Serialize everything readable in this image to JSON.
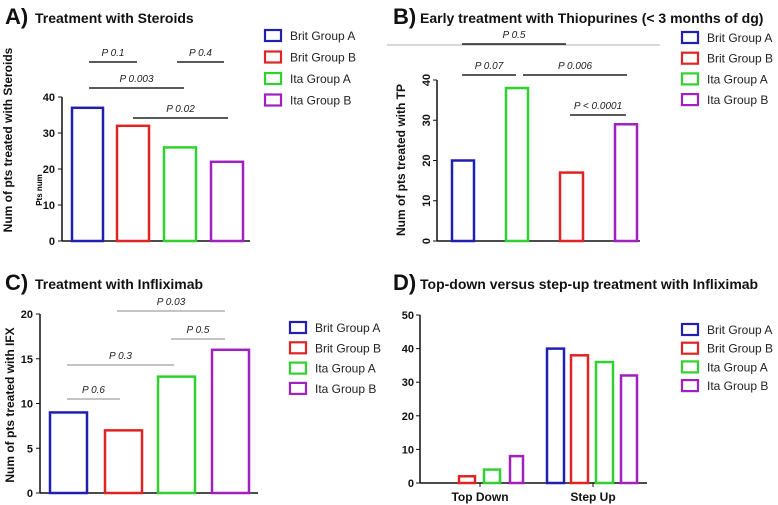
{
  "colors": {
    "Brit Group A": "#2020b0",
    "Brit Group B": "#e02424",
    "Ita Group A": "#30d030",
    "Ita Group B": "#a020c0"
  },
  "chart_data": [
    {
      "panel": "A)",
      "title": "Treatment with Steroids",
      "type": "bar",
      "ylabel": "Num of pts treated with Steroids",
      "ylabel2": "Pts num",
      "ylim": [
        0,
        40
      ],
      "yticks": [
        "0",
        "10",
        "20",
        "30",
        "40"
      ],
      "series": [
        {
          "name": "Brit Group A",
          "values": [
            37
          ]
        },
        {
          "name": "Brit Group B",
          "values": [
            32
          ]
        },
        {
          "name": "Ita Group A",
          "values": [
            26
          ]
        },
        {
          "name": "Ita Group B",
          "values": [
            22
          ]
        }
      ],
      "bar_order": [
        "Brit Group A",
        "Brit Group B",
        "Ita Group A",
        "Ita Group B"
      ],
      "legend": [
        "Brit Group A",
        "Brit Group B",
        "Ita Group A",
        "Ita Group B"
      ],
      "annotations": [
        {
          "text": "P 0.1",
          "between": [
            "Brit Group A",
            "Brit Group B"
          ]
        },
        {
          "text": "P 0.4",
          "between": [
            "Ita Group A",
            "Ita Group B"
          ]
        },
        {
          "text": "P 0.003",
          "between": [
            "Brit Group A",
            "Ita Group A"
          ]
        },
        {
          "text": "P 0.02",
          "between": [
            "Brit Group B",
            "Ita Group B"
          ]
        }
      ]
    },
    {
      "panel": "B)",
      "title": "Early treatment with Thiopurines (< 3 months of dg)",
      "type": "bar",
      "ylabel": "Num of pts treated with TP",
      "ylim": [
        0,
        40
      ],
      "yticks": [
        "0",
        "10",
        "20",
        "30",
        "40"
      ],
      "series": [
        {
          "name": "Brit Group A",
          "values": [
            20
          ]
        },
        {
          "name": "Ita Group A",
          "values": [
            38
          ]
        },
        {
          "name": "Brit Group B",
          "values": [
            17
          ]
        },
        {
          "name": "Ita Group B",
          "values": [
            29
          ]
        }
      ],
      "bar_order": [
        "Brit Group A",
        "Ita Group A",
        "Brit Group B",
        "Ita Group B"
      ],
      "legend": [
        "Brit Group A",
        "Brit Group B",
        "Ita Group A",
        "Ita Group B"
      ],
      "annotations": [
        {
          "text": "P 0.5",
          "between": [
            "Brit Group A",
            "Brit Group B"
          ]
        },
        {
          "text": "P 0.07",
          "between": [
            "Brit Group A",
            "Ita Group A"
          ]
        },
        {
          "text": "P 0.006",
          "between": [
            "Ita Group A",
            "Ita Group B"
          ]
        },
        {
          "text": "P < 0.0001",
          "between": [
            "Brit Group B",
            "Ita Group B"
          ]
        }
      ]
    },
    {
      "panel": "C)",
      "title": "Treatment with Infliximab",
      "type": "bar",
      "ylabel": "Num of pts treated with IFX",
      "ylim": [
        0,
        20
      ],
      "yticks": [
        "0",
        "5",
        "10",
        "15",
        "20"
      ],
      "series": [
        {
          "name": "Brit Group A",
          "values": [
            9
          ]
        },
        {
          "name": "Brit Group B",
          "values": [
            7
          ]
        },
        {
          "name": "Ita Group A",
          "values": [
            13
          ]
        },
        {
          "name": "Ita Group B",
          "values": [
            16
          ]
        }
      ],
      "bar_order": [
        "Brit Group A",
        "Brit Group B",
        "Ita Group A",
        "Ita Group B"
      ],
      "legend": [
        "Brit Group A",
        "Brit Group B",
        "Ita Group A",
        "Ita Group B"
      ],
      "annotations": [
        {
          "text": "P 0.03",
          "between": [
            "Brit Group B",
            "Ita Group B"
          ]
        },
        {
          "text": "P 0.5",
          "between": [
            "Ita Group A",
            "Ita Group B"
          ]
        },
        {
          "text": "P 0.3",
          "between": [
            "Brit Group A",
            "Ita Group A"
          ]
        },
        {
          "text": "P 0.6",
          "between": [
            "Brit Group A",
            "Brit Group B"
          ]
        }
      ]
    },
    {
      "panel": "D)",
      "title": "Top-down versus step-up treatment with Infliximab",
      "type": "bar",
      "ylim": [
        0,
        50
      ],
      "yticks": [
        "0",
        "10",
        "20",
        "30",
        "40",
        "50"
      ],
      "categories": [
        "Top Down",
        "Step Up"
      ],
      "series": [
        {
          "name": "Brit Group A",
          "values": [
            0,
            40
          ]
        },
        {
          "name": "Brit Group B",
          "values": [
            2,
            38
          ]
        },
        {
          "name": "Ita Group A",
          "values": [
            4,
            36
          ]
        },
        {
          "name": "Ita Group B",
          "values": [
            8,
            32
          ]
        }
      ],
      "legend": [
        "Brit Group A",
        "Brit Group B",
        "Ita Group A",
        "Ita Group B"
      ]
    }
  ]
}
